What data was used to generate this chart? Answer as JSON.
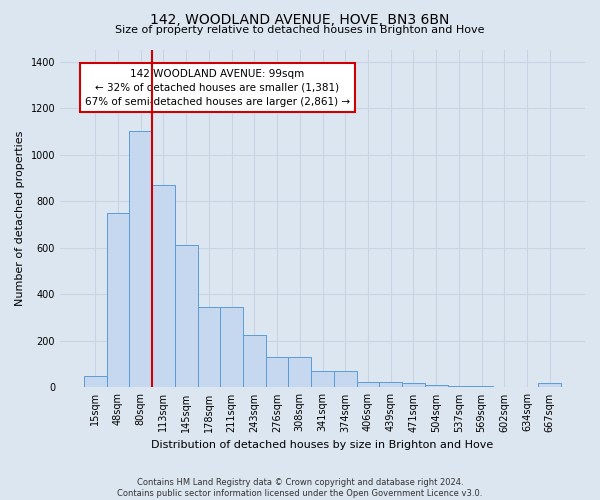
{
  "title": "142, WOODLAND AVENUE, HOVE, BN3 6BN",
  "subtitle": "Size of property relative to detached houses in Brighton and Hove",
  "xlabel": "Distribution of detached houses by size in Brighton and Hove",
  "ylabel": "Number of detached properties",
  "footer_line1": "Contains HM Land Registry data © Crown copyright and database right 2024.",
  "footer_line2": "Contains public sector information licensed under the Open Government Licence v3.0.",
  "categories": [
    "15sqm",
    "48sqm",
    "80sqm",
    "113sqm",
    "145sqm",
    "178sqm",
    "211sqm",
    "243sqm",
    "276sqm",
    "308sqm",
    "341sqm",
    "374sqm",
    "406sqm",
    "439sqm",
    "471sqm",
    "504sqm",
    "537sqm",
    "569sqm",
    "602sqm",
    "634sqm",
    "667sqm"
  ],
  "values": [
    50,
    750,
    1100,
    870,
    610,
    345,
    345,
    225,
    130,
    130,
    70,
    70,
    25,
    25,
    18,
    10,
    5,
    5,
    0,
    0,
    18
  ],
  "bar_color": "#c5d8f0",
  "bar_edge_color": "#5b9bd5",
  "property_line_bin": 2,
  "annotation_title": "142 WOODLAND AVENUE: 99sqm",
  "annotation_line2": "← 32% of detached houses are smaller (1,381)",
  "annotation_line3": "67% of semi-detached houses are larger (2,861) →",
  "annotation_box_color": "#ffffff",
  "annotation_border_color": "#cc0000",
  "vline_color": "#cc0000",
  "ylim": [
    0,
    1450
  ],
  "yticks": [
    0,
    200,
    400,
    600,
    800,
    1000,
    1200,
    1400
  ],
  "grid_color": "#c8d4e4",
  "background_color": "#dce6f1",
  "plot_bg_color": "#dce6f1",
  "title_fontsize": 10,
  "subtitle_fontsize": 8,
  "xlabel_fontsize": 8,
  "ylabel_fontsize": 8,
  "tick_fontsize": 7,
  "footer_fontsize": 6,
  "annotation_fontsize": 7.5
}
